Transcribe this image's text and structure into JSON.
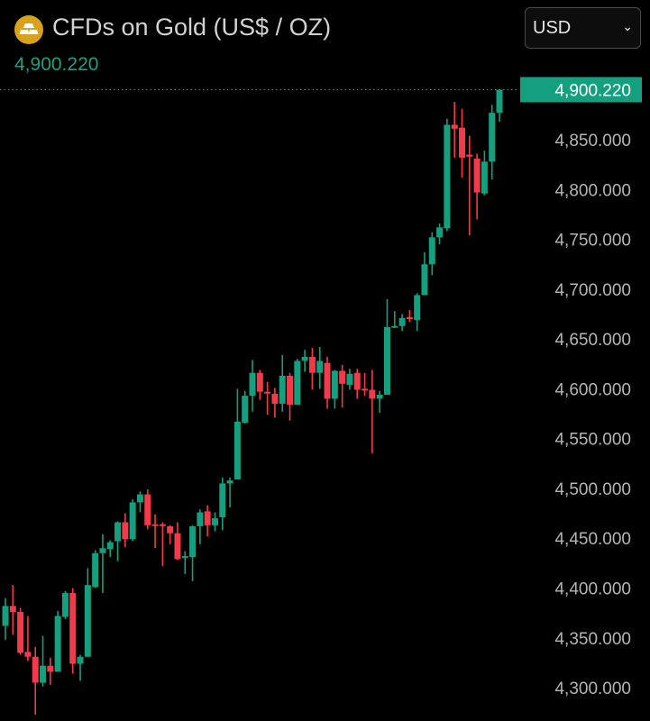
{
  "header": {
    "icon": "gold-bars-icon",
    "title": "CFDs on Gold (US$ / OZ)",
    "last_price": "4,900.220",
    "currency_select": {
      "value": "USD",
      "icon": "chevron-down-icon"
    }
  },
  "colors": {
    "up": "#14a07e",
    "down": "#f23a4b",
    "price_line": "#14a07e",
    "tick_text": "#b5b5b5"
  },
  "chart_data": {
    "type": "candlestick",
    "y_axis_position": "right",
    "ylim": [
      4265,
      4920
    ],
    "grid": false,
    "y_ticks": [
      4850,
      4800,
      4750,
      4700,
      4650,
      4600,
      4550,
      4500,
      4450,
      4400,
      4350,
      4300
    ],
    "y_tick_labels": [
      "4,850.000",
      "4,800.000",
      "4,750.000",
      "4,700.000",
      "4,650.000",
      "4,600.000",
      "4,550.000",
      "4,500.000",
      "4,450.000",
      "4,400.000",
      "4,350.000",
      "4,300.000"
    ],
    "current_price": 4900.22,
    "current_price_label": "4,900.220",
    "ohlc": [
      [
        4362,
        4390,
        4348,
        4382
      ],
      [
        4382,
        4403,
        4353,
        4376
      ],
      [
        4376,
        4380,
        4333,
        4335
      ],
      [
        4336,
        4372,
        4327,
        4331
      ],
      [
        4331,
        4341,
        4273,
        4305
      ],
      [
        4305,
        4352,
        4301,
        4322
      ],
      [
        4322,
        4330,
        4303,
        4316
      ],
      [
        4316,
        4377,
        4316,
        4372
      ],
      [
        4371,
        4397,
        4369,
        4395
      ],
      [
        4395,
        4400,
        4314,
        4324
      ],
      [
        4324,
        4333,
        4307,
        4331
      ],
      [
        4331,
        4420,
        4331,
        4403
      ],
      [
        4401,
        4438,
        4400,
        4435
      ],
      [
        4435,
        4454,
        4395,
        4440
      ],
      [
        4439,
        4448,
        4431,
        4446
      ],
      [
        4447,
        4467,
        4427,
        4466
      ],
      [
        4466,
        4475,
        4441,
        4449
      ],
      [
        4449,
        4489,
        4447,
        4486
      ],
      [
        4486,
        4497,
        4476,
        4494
      ],
      [
        4494,
        4499,
        4459,
        4463
      ],
      [
        4464,
        4474,
        4440,
        4463
      ],
      [
        4464,
        4466,
        4422,
        4463
      ],
      [
        4462,
        4463,
        4444,
        4455
      ],
      [
        4455,
        4466,
        4428,
        4429
      ],
      [
        4431,
        4437,
        4414,
        4432
      ],
      [
        4431,
        4463,
        4407,
        4462
      ],
      [
        4462,
        4479,
        4444,
        4476
      ],
      [
        4477,
        4483,
        4452,
        4463
      ],
      [
        4463,
        4476,
        4457,
        4470
      ],
      [
        4471,
        4511,
        4458,
        4505
      ],
      [
        4505,
        4511,
        4481,
        4508
      ],
      [
        4509,
        4600,
        4509,
        4567
      ],
      [
        4566,
        4598,
        4565,
        4593
      ],
      [
        4593,
        4629,
        4577,
        4616
      ],
      [
        4616,
        4619,
        4589,
        4597
      ],
      [
        4597,
        4607,
        4574,
        4596
      ],
      [
        4595,
        4601,
        4571,
        4585
      ],
      [
        4585,
        4634,
        4577,
        4613
      ],
      [
        4613,
        4616,
        4568,
        4584
      ],
      [
        4584,
        4630,
        4584,
        4628
      ],
      [
        4628,
        4639,
        4617,
        4632
      ],
      [
        4632,
        4641,
        4599,
        4616
      ],
      [
        4616,
        4642,
        4600,
        4628
      ],
      [
        4626,
        4632,
        4580,
        4590
      ],
      [
        4590,
        4619,
        4580,
        4618
      ],
      [
        4618,
        4624,
        4581,
        4605
      ],
      [
        4604,
        4620,
        4599,
        4615
      ],
      [
        4616,
        4620,
        4590,
        4599
      ],
      [
        4600,
        4616,
        4593,
        4599
      ],
      [
        4599,
        4619,
        4535,
        4590
      ],
      [
        4590,
        4598,
        4576,
        4594
      ],
      [
        4594,
        4690,
        4594,
        4662
      ],
      [
        4662,
        4678,
        4661,
        4663
      ],
      [
        4663,
        4675,
        4658,
        4671
      ],
      [
        4672,
        4679,
        4667,
        4670
      ],
      [
        4669,
        4696,
        4658,
        4694
      ],
      [
        4694,
        4737,
        4694,
        4725
      ],
      [
        4725,
        4757,
        4714,
        4752
      ],
      [
        4752,
        4766,
        4745,
        4762
      ],
      [
        4761,
        4871,
        4758,
        4865
      ],
      [
        4865,
        4888,
        4832,
        4861
      ],
      [
        4862,
        4881,
        4812,
        4832
      ],
      [
        4835,
        4854,
        4754,
        4833
      ],
      [
        4831,
        4836,
        4770,
        4797
      ],
      [
        4796,
        4839,
        4794,
        4828
      ],
      [
        4828,
        4885,
        4810,
        4877
      ],
      [
        4877,
        4900.22,
        4868,
        4900.22
      ]
    ]
  }
}
